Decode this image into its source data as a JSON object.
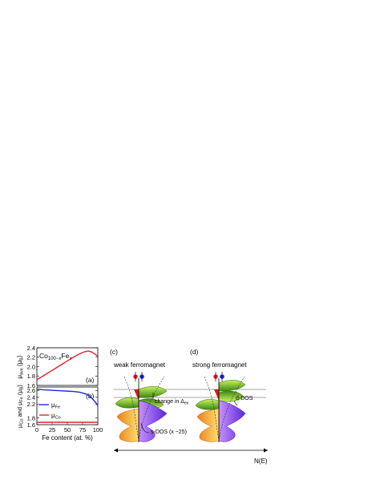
{
  "chart_data": [
    {
      "type": "line",
      "panel_label": "(a)",
      "annotation_base": "Co",
      "annotation_sub1": "100−x",
      "annotation_mid": "Fe",
      "annotation_sub2": "x",
      "ylabel_main": "μ",
      "ylabel_sub": "ave",
      "ylabel_unit": " (μ",
      "ylabel_unit_sub": "B",
      "ylabel_close": ")",
      "xlim": [
        0,
        100
      ],
      "ylim": [
        1.6,
        2.4
      ],
      "y_ticks": [
        "1.6",
        "1.8",
        "2.0",
        "2.2",
        "2.4"
      ],
      "series": [
        {
          "color": "#e8202a",
          "x": [
            0,
            10,
            20,
            30,
            40,
            50,
            60,
            70,
            75,
            80,
            85,
            90,
            95,
            100
          ],
          "y": [
            1.72,
            1.8,
            1.88,
            1.96,
            2.04,
            2.12,
            2.2,
            2.27,
            2.3,
            2.32,
            2.33,
            2.31,
            2.27,
            2.22
          ]
        }
      ]
    },
    {
      "type": "line",
      "panel_label": "(b)",
      "ylabel_a": "μ",
      "ylabel_a_sub": "Co",
      "ylabel_and": " and μ",
      "ylabel_b_sub": "Fe",
      "ylabel_unit": " (μ",
      "ylabel_unit_sub": "B",
      "ylabel_close": ")",
      "xlabel": "Fe content (at. %)",
      "xlim": [
        0,
        100
      ],
      "ylim": [
        1.6,
        2.7
      ],
      "x_ticks": [
        "0",
        "25",
        "50",
        "75",
        "100"
      ],
      "y_ticks": [
        "1.6",
        "1.8",
        "2.2",
        "2.4",
        "2.6"
      ],
      "legend_position": "bottom-left",
      "series": [
        {
          "name_base": "μ",
          "name_sub": "Fe",
          "color": "#1a2bdb",
          "x": [
            0,
            10,
            20,
            30,
            40,
            50,
            60,
            70,
            80,
            85,
            90,
            95,
            100
          ],
          "y": [
            2.64,
            2.62,
            2.61,
            2.6,
            2.59,
            2.58,
            2.57,
            2.55,
            2.5,
            2.45,
            2.38,
            2.28,
            2.16
          ]
        },
        {
          "name_base": "μ",
          "name_sub": "Co",
          "color": "#e8202a",
          "x": [
            0,
            25,
            50,
            75,
            100
          ],
          "y": [
            1.67,
            1.67,
            1.67,
            1.67,
            1.67
          ]
        }
      ]
    }
  ],
  "diagrams": {
    "c_label": "(c)",
    "d_label": "(d)",
    "c_title": "weak ferromagnet",
    "d_title": "strong ferromagnet",
    "change_text": "change in Δ",
    "change_sub": "ex",
    "ddos_label": "d-DOS",
    "sdos_label": "s-DOS (x ~25)",
    "axis_label": "N(E)",
    "colors": {
      "green_light": "#c8f060",
      "green_dark": "#3c8a10",
      "orange_light": "#ffe070",
      "orange_dark": "#e8801a",
      "violet_light": "#c890ff",
      "violet_dark": "#5a28d8",
      "red_fill": "#d8201c",
      "spin_red": "#e8202a",
      "spin_blue": "#1a2bdb"
    }
  }
}
